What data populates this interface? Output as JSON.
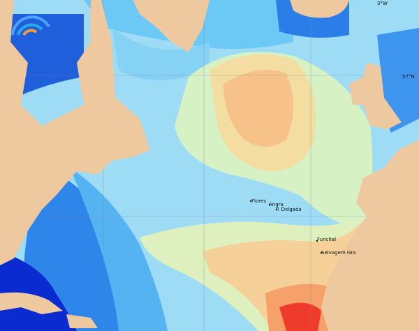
{
  "places": [
    "Flores",
    "Angra",
    "P. Delgada",
    "Funchal",
    "Selvagem Gra"
  ],
  "graticule": {
    "top": "3°W",
    "right": "57°N"
  }
}
